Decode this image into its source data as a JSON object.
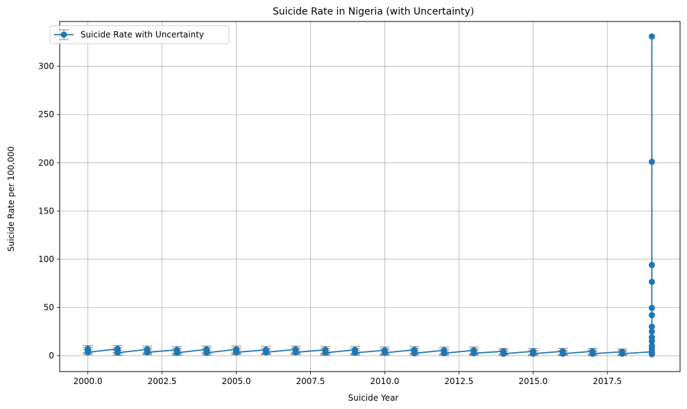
{
  "chart_data": {
    "type": "line",
    "title": "Suicide Rate in Nigeria (with Uncertainty)",
    "xlabel": "Suicide Year",
    "ylabel": "Suicide Rate per 100,000",
    "xlim": [
      1999.05,
      2019.95
    ],
    "ylim": [
      -16.5,
      346.5
    ],
    "xticks": [
      2000.0,
      2002.5,
      2005.0,
      2007.5,
      2010.0,
      2012.5,
      2015.0,
      2017.5
    ],
    "xtick_labels": [
      "2000.0",
      "2002.5",
      "2005.0",
      "2007.5",
      "2010.0",
      "2012.5",
      "2015.0",
      "2017.5"
    ],
    "yticks": [
      0,
      50,
      100,
      150,
      200,
      250,
      300
    ],
    "ytick_labels": [
      "0",
      "50",
      "100",
      "150",
      "200",
      "250",
      "300"
    ],
    "grid": true,
    "legend_position": "top-left",
    "line_color": "#1f77b4",
    "errorbar_color": "#808080",
    "series": [
      {
        "name": "Suicide Rate with Uncertainty",
        "points": [
          {
            "x": 2000,
            "y": 7.0,
            "err": 3.5
          },
          {
            "x": 2000,
            "y": 5.5,
            "err": 3.0
          },
          {
            "x": 2000,
            "y": 3.5,
            "err": 2.5
          },
          {
            "x": 2001,
            "y": 7.0,
            "err": 3.5
          },
          {
            "x": 2001,
            "y": 5.5,
            "err": 3.0
          },
          {
            "x": 2001,
            "y": 3.0,
            "err": 2.5
          },
          {
            "x": 2002,
            "y": 6.5,
            "err": 3.5
          },
          {
            "x": 2002,
            "y": 5.0,
            "err": 3.0
          },
          {
            "x": 2002,
            "y": 3.5,
            "err": 2.5
          },
          {
            "x": 2003,
            "y": 6.0,
            "err": 3.5
          },
          {
            "x": 2003,
            "y": 4.5,
            "err": 3.0
          },
          {
            "x": 2003,
            "y": 3.0,
            "err": 2.5
          },
          {
            "x": 2004,
            "y": 6.5,
            "err": 3.5
          },
          {
            "x": 2004,
            "y": 5.0,
            "err": 3.0
          },
          {
            "x": 2004,
            "y": 3.0,
            "err": 2.5
          },
          {
            "x": 2005,
            "y": 6.5,
            "err": 3.5
          },
          {
            "x": 2005,
            "y": 5.0,
            "err": 3.0
          },
          {
            "x": 2005,
            "y": 3.5,
            "err": 2.5
          },
          {
            "x": 2006,
            "y": 6.0,
            "err": 3.5
          },
          {
            "x": 2006,
            "y": 4.5,
            "err": 3.0
          },
          {
            "x": 2006,
            "y": 3.5,
            "err": 2.5
          },
          {
            "x": 2007,
            "y": 6.5,
            "err": 3.5
          },
          {
            "x": 2007,
            "y": 5.0,
            "err": 3.0
          },
          {
            "x": 2007,
            "y": 3.5,
            "err": 2.5
          },
          {
            "x": 2008,
            "y": 6.0,
            "err": 3.5
          },
          {
            "x": 2008,
            "y": 4.5,
            "err": 3.0
          },
          {
            "x": 2008,
            "y": 3.0,
            "err": 2.5
          },
          {
            "x": 2009,
            "y": 6.0,
            "err": 3.5
          },
          {
            "x": 2009,
            "y": 4.5,
            "err": 3.0
          },
          {
            "x": 2009,
            "y": 3.0,
            "err": 2.5
          },
          {
            "x": 2010,
            "y": 5.5,
            "err": 3.5
          },
          {
            "x": 2010,
            "y": 4.0,
            "err": 3.0
          },
          {
            "x": 2010,
            "y": 3.0,
            "err": 2.5
          },
          {
            "x": 2011,
            "y": 6.0,
            "err": 3.5
          },
          {
            "x": 2011,
            "y": 4.5,
            "err": 3.0
          },
          {
            "x": 2011,
            "y": 2.5,
            "err": 2.5
          },
          {
            "x": 2012,
            "y": 5.5,
            "err": 3.5
          },
          {
            "x": 2012,
            "y": 4.0,
            "err": 3.0
          },
          {
            "x": 2012,
            "y": 2.5,
            "err": 2.5
          },
          {
            "x": 2013,
            "y": 5.5,
            "err": 3.5
          },
          {
            "x": 2013,
            "y": 4.0,
            "err": 3.0
          },
          {
            "x": 2013,
            "y": 2.5,
            "err": 2.5
          },
          {
            "x": 2014,
            "y": 4.5,
            "err": 3.0
          },
          {
            "x": 2014,
            "y": 3.5,
            "err": 2.5
          },
          {
            "x": 2014,
            "y": 2.0,
            "err": 2.0
          },
          {
            "x": 2015,
            "y": 4.5,
            "err": 3.0
          },
          {
            "x": 2015,
            "y": 3.0,
            "err": 2.5
          },
          {
            "x": 2015,
            "y": 2.0,
            "err": 2.0
          },
          {
            "x": 2016,
            "y": 4.5,
            "err": 3.0
          },
          {
            "x": 2016,
            "y": 3.0,
            "err": 2.5
          },
          {
            "x": 2016,
            "y": 2.0,
            "err": 2.0
          },
          {
            "x": 2017,
            "y": 4.5,
            "err": 3.0
          },
          {
            "x": 2017,
            "y": 3.0,
            "err": 2.5
          },
          {
            "x": 2017,
            "y": 2.0,
            "err": 2.0
          },
          {
            "x": 2018,
            "y": 4.0,
            "err": 3.0
          },
          {
            "x": 2018,
            "y": 3.0,
            "err": 2.5
          },
          {
            "x": 2018,
            "y": 2.0,
            "err": 2.0
          },
          {
            "x": 2019,
            "y": 4.0,
            "err": 0
          },
          {
            "x": 2019,
            "y": 331.0,
            "err": 0
          },
          {
            "x": 2019,
            "y": 201.0,
            "err": 0
          },
          {
            "x": 2019,
            "y": 94.0,
            "err": 0
          },
          {
            "x": 2019,
            "y": 76.5,
            "err": 0
          },
          {
            "x": 2019,
            "y": 49.5,
            "err": 0
          },
          {
            "x": 2019,
            "y": 42.0,
            "err": 0
          },
          {
            "x": 2019,
            "y": 30.0,
            "err": 0
          },
          {
            "x": 2019,
            "y": 25.0,
            "err": 0
          },
          {
            "x": 2019,
            "y": 19.0,
            "err": 0
          },
          {
            "x": 2019,
            "y": 15.0,
            "err": 0
          },
          {
            "x": 2019,
            "y": 10.0,
            "err": 0
          },
          {
            "x": 2019,
            "y": 7.0,
            "err": 0
          },
          {
            "x": 2019,
            "y": 4.0,
            "err": 0
          },
          {
            "x": 2019,
            "y": 1.5,
            "err": 0
          }
        ]
      }
    ]
  }
}
